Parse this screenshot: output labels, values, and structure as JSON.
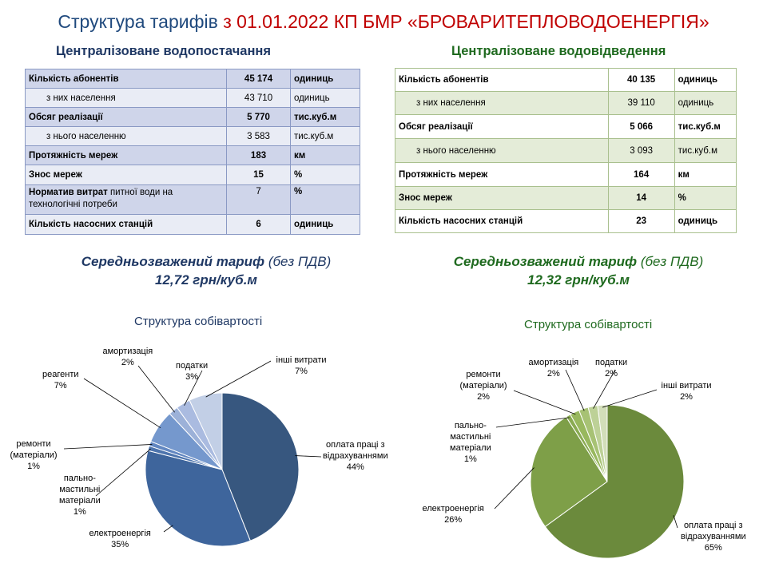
{
  "title": {
    "part1": "Структура тарифів",
    "part2": "з 01.01.2022 КП БМР «БРОВАРИТЕПЛОВОДОЕНЕРГІЯ»"
  },
  "water": {
    "heading": "Централізоване  водопостачання",
    "rows": [
      {
        "label": "Кількість  абонентів",
        "value": "45 174",
        "unit": "одиниць"
      },
      {
        "label": "з них населення",
        "value": "43 710",
        "unit": "одиниць"
      },
      {
        "label": "Обсяг реалізації",
        "value": "5 770",
        "unit": "тис.куб.м"
      },
      {
        "label": "з нього населенню",
        "value": "3 583",
        "unit": "тис.куб.м"
      },
      {
        "label": "Протяжність мереж",
        "value": "183",
        "unit": "км"
      },
      {
        "label": "Знос мереж",
        "value": "15",
        "unit": "%"
      },
      {
        "label_bold": "Норматив витрат",
        "label_rest": " питної води на технологічні потреби",
        "value": "7",
        "unit": "%"
      },
      {
        "label": "Кількість  насосних станцій",
        "value": "6",
        "unit": "одиниць"
      }
    ],
    "tariff_title": "Середньозважений  тариф",
    "tariff_note": "(без ПДВ)",
    "tariff_value": "12,72 грн/куб.м",
    "chart_title": "Структура собівартості"
  },
  "sewer": {
    "heading": "Централізоване  водовідведення",
    "rows": [
      {
        "label": "Кількість  абонентів",
        "value": "40 135",
        "unit": "одиниць"
      },
      {
        "label": "з них населення",
        "value": "39 110",
        "unit": "одиниць"
      },
      {
        "label": "Обсяг реалізації",
        "value": "5 066",
        "unit": "тис.куб.м"
      },
      {
        "label": "з нього населенню",
        "value": "3 093",
        "unit": "тис.куб.м"
      },
      {
        "label": "Протяжність мереж",
        "value": "164",
        "unit": "км"
      },
      {
        "label": "Знос мереж",
        "value": "14",
        "unit": "%"
      },
      {
        "label": "Кількість  насосних станцій",
        "value": "23",
        "unit": "одиниць"
      }
    ],
    "tariff_title": "Середньозважений  тариф",
    "tariff_note": "(без ПДВ)",
    "tariff_value": "12,32 грн/куб.м",
    "chart_title": "Структура собівартості"
  },
  "chart_data": [
    {
      "type": "pie",
      "title": "Структура собівартості",
      "labels": [
        "оплата праці з відрахуваннями",
        "електроенергія",
        "пально-мастильні матеріали",
        "ремонти (матеріали)",
        "реагенти",
        "амортизація",
        "податки",
        "інші витрати"
      ],
      "values": [
        44,
        35,
        1,
        1,
        7,
        2,
        3,
        7
      ],
      "value_labels": [
        "44%",
        "35%",
        "1%",
        "1%",
        "7%",
        "2%",
        "3%",
        "7%"
      ],
      "colors": [
        "#37577f",
        "#3e659c",
        "#4d74ad",
        "#6287c1",
        "#7598cd",
        "#9cb1d8",
        "#aabbe0",
        "#c2cfe6"
      ]
    },
    {
      "type": "pie",
      "title": "Структура собівартості",
      "labels": [
        "оплата праці з відрахуваннями",
        "електроенергія",
        "пально-мастильні матеріали",
        "ремонти (матеріали)",
        "амортизація",
        "податки",
        "інші витрати"
      ],
      "values": [
        65,
        26,
        1,
        2,
        2,
        2,
        2
      ],
      "value_labels": [
        "65%",
        "26%",
        "1%",
        "2%",
        "2%",
        "2%",
        "2%"
      ],
      "colors": [
        "#6b8a3c",
        "#7e9f48",
        "#8aab52",
        "#98b85e",
        "#a7c274",
        "#bdd197",
        "#d2deb9"
      ]
    }
  ]
}
